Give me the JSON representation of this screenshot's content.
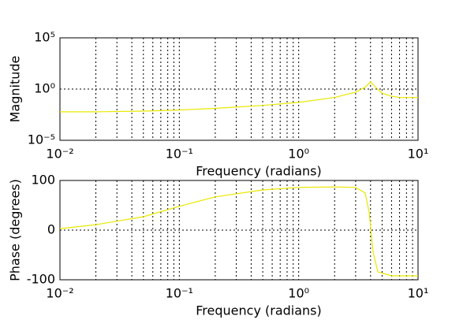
{
  "chart_data": [
    {
      "type": "line",
      "ylabel": "Magnitude",
      "xlabel": "Frequency (radians)",
      "xscale": "log",
      "yscale": "log",
      "grid": true,
      "x": [
        0.01,
        0.02,
        0.05,
        0.1,
        0.2,
        0.5,
        1,
        2,
        3,
        3.6,
        4,
        4.5,
        5,
        6,
        7,
        10
      ],
      "series": [
        {
          "name": "Magnitude",
          "color": "#e8e800",
          "values": [
            0.006,
            0.006,
            0.007,
            0.009,
            0.013,
            0.025,
            0.05,
            0.15,
            0.5,
            1.5,
            5,
            1.2,
            0.4,
            0.2,
            0.15,
            0.15
          ]
        }
      ],
      "xlim": [
        0.01,
        10
      ],
      "xticks": [
        {
          "value": 0.01,
          "label": "10⁻²"
        },
        {
          "value": 0.1,
          "label": "10⁻¹"
        },
        {
          "value": 1,
          "label": "10⁰"
        },
        {
          "value": 10,
          "label": "10¹"
        }
      ],
      "xminorticks": [
        0.02,
        0.03,
        0.04,
        0.05,
        0.06,
        0.07,
        0.08,
        0.09,
        0.2,
        0.3,
        0.4,
        0.5,
        0.6,
        0.7,
        0.8,
        0.9,
        2,
        3,
        4,
        5,
        6,
        7,
        8,
        9
      ],
      "ylim": [
        1e-05,
        100000
      ],
      "yticks": [
        {
          "value": 1e-05,
          "label": "10⁻⁵"
        },
        {
          "value": 1,
          "label": "10⁰"
        },
        {
          "value": 100000,
          "label": "10⁵"
        }
      ]
    },
    {
      "type": "line",
      "ylabel": "Phase (degrees)",
      "xlabel": "Frequency (radians)",
      "xscale": "log",
      "yscale": "linear",
      "grid": true,
      "x": [
        0.01,
        0.02,
        0.05,
        0.1,
        0.2,
        0.5,
        1,
        2,
        3,
        3.6,
        3.9,
        4.2,
        4.6,
        6,
        10
      ],
      "series": [
        {
          "name": "Phase",
          "color": "#e8e800",
          "values": [
            3,
            11,
            27,
            48,
            67,
            81,
            86,
            87,
            86,
            75,
            35,
            -44,
            -84,
            -92,
            -92
          ]
        }
      ],
      "xlim": [
        0.01,
        10
      ],
      "xticks": [
        {
          "value": 0.01,
          "label": "10⁻²"
        },
        {
          "value": 0.1,
          "label": "10⁻¹"
        },
        {
          "value": 1,
          "label": "10⁰"
        },
        {
          "value": 10,
          "label": "10¹"
        }
      ],
      "xminorticks": [
        0.02,
        0.03,
        0.04,
        0.05,
        0.06,
        0.07,
        0.08,
        0.09,
        0.2,
        0.3,
        0.4,
        0.5,
        0.6,
        0.7,
        0.8,
        0.9,
        2,
        3,
        4,
        5,
        6,
        7,
        8,
        9
      ],
      "ylim": [
        -100,
        100
      ],
      "yticks": [
        -100,
        0,
        100
      ]
    }
  ]
}
